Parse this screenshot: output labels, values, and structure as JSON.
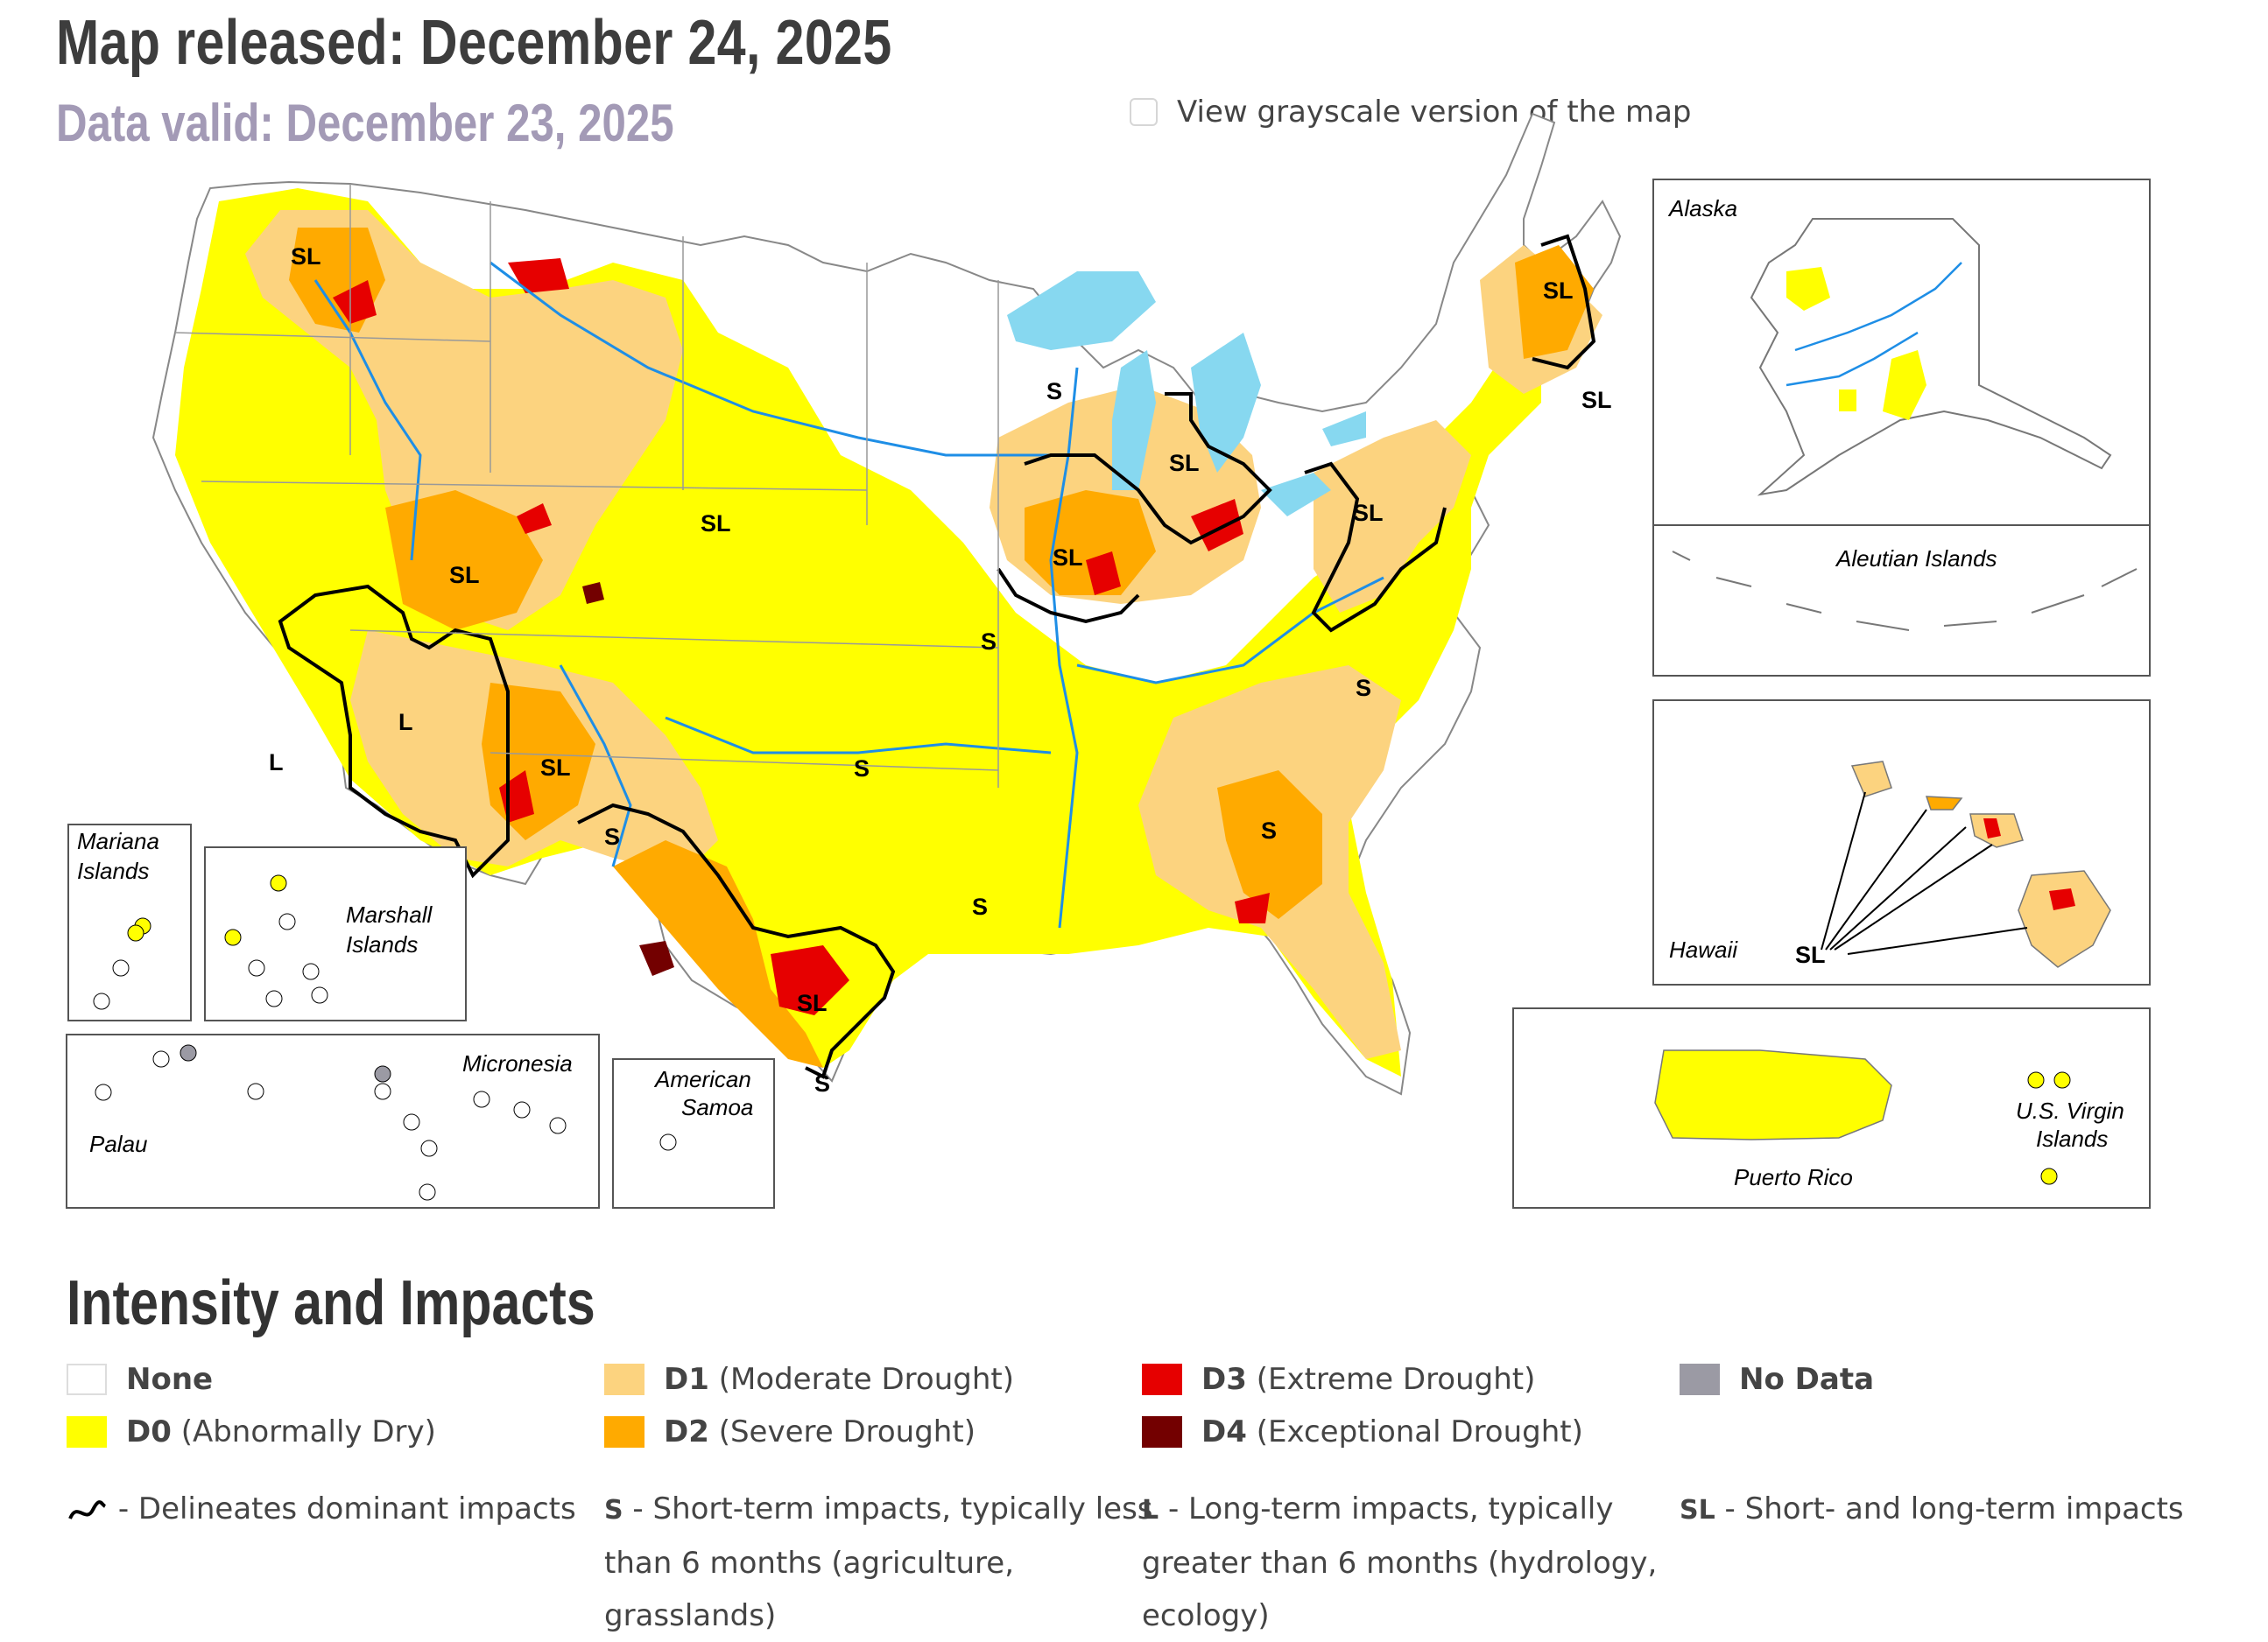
{
  "header": {
    "released": "Map released: December 24, 2025",
    "valid": "Data valid: December 23, 2025",
    "grayscale_label": "View grayscale version of the map"
  },
  "map_labels": {
    "alaska": "Alaska",
    "aleutian": "Aleutian Islands",
    "hawaii": "Hawaii",
    "puerto_rico": "Puerto Rico",
    "usvi_1": "U.S. Virgin",
    "usvi_2": "Islands",
    "mariana_1": "Mariana",
    "mariana_2": "Islands",
    "marshall_1": "Marshall",
    "marshall_2": "Islands",
    "micronesia": "Micronesia",
    "palau": "Palau",
    "samoa_1": "American",
    "samoa_2": "Samoa"
  },
  "impact_codes": {
    "sl": "SL",
    "s": "S",
    "l": "L"
  },
  "colors": {
    "none": "#ffffff",
    "d0": "#ffff00",
    "d1": "#fcd37f",
    "d2": "#ffaa00",
    "d3": "#e60000",
    "d4": "#730000",
    "no_data": "#9b9aa4",
    "water": "#87d8f0",
    "river": "#1e8ee6"
  },
  "legend": {
    "title": "Intensity and Impacts",
    "none": "None",
    "d0_code": "D0",
    "d0_desc": "(Abnormally Dry)",
    "d1_code": "D1",
    "d1_desc": "(Moderate Drought)",
    "d2_code": "D2",
    "d2_desc": "(Severe Drought)",
    "d3_code": "D3",
    "d3_desc": "(Extreme Drought)",
    "d4_code": "D4",
    "d4_desc": "(Exceptional Drought)",
    "no_data": "No Data"
  },
  "impacts": {
    "line_text": "- Delineates dominant impacts",
    "s_code": "S",
    "s_line1": "- Short-term impacts, typically less",
    "s_line2": "than 6 months (agriculture,",
    "s_line3": "grasslands)",
    "l_code": "L",
    "l_line1": "- Long-term impacts, typically",
    "l_line2": "greater than 6 months (hydrology,",
    "l_line3": "ecology)",
    "sl_code": "SL",
    "sl_line1": "- Short- and long-term impacts"
  }
}
